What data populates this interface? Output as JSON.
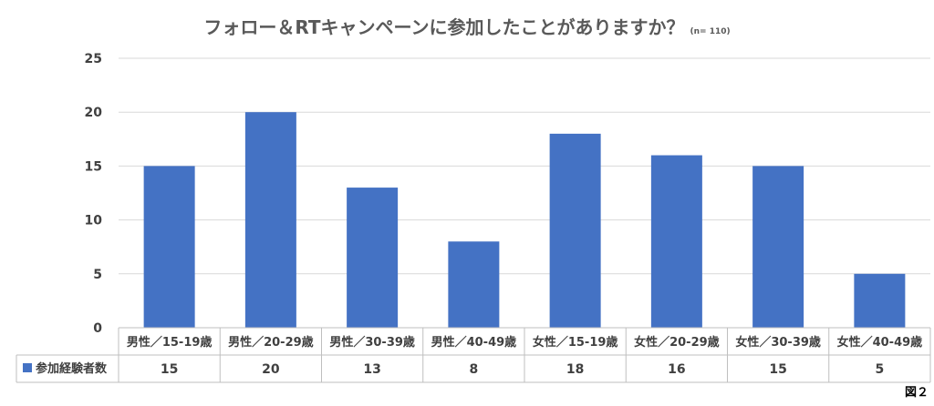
{
  "title": "フォロー＆RTキャンペーンに参加したことがありますか？",
  "sample_note": "(n= 110)",
  "figure_label": "図２",
  "chart_data": {
    "type": "bar",
    "title": "フォロー＆RTキャンペーンに参加したことがありますか？",
    "categories": [
      "男性／15-19歳",
      "男性／20-29歳",
      "男性／30-39歳",
      "男性／40-49歳",
      "女性／15-19歳",
      "女性／20-29歳",
      "女性／30-39歳",
      "女性／40-49歳"
    ],
    "series": [
      {
        "name": "参加経験者数",
        "values": [
          15,
          20,
          13,
          8,
          18,
          16,
          15,
          5
        ],
        "color": "#4472C4"
      }
    ],
    "ylim": [
      0,
      25
    ],
    "yticks": [
      0,
      5,
      10,
      15,
      20,
      25
    ],
    "grid": true,
    "legend": "data-table-row"
  }
}
